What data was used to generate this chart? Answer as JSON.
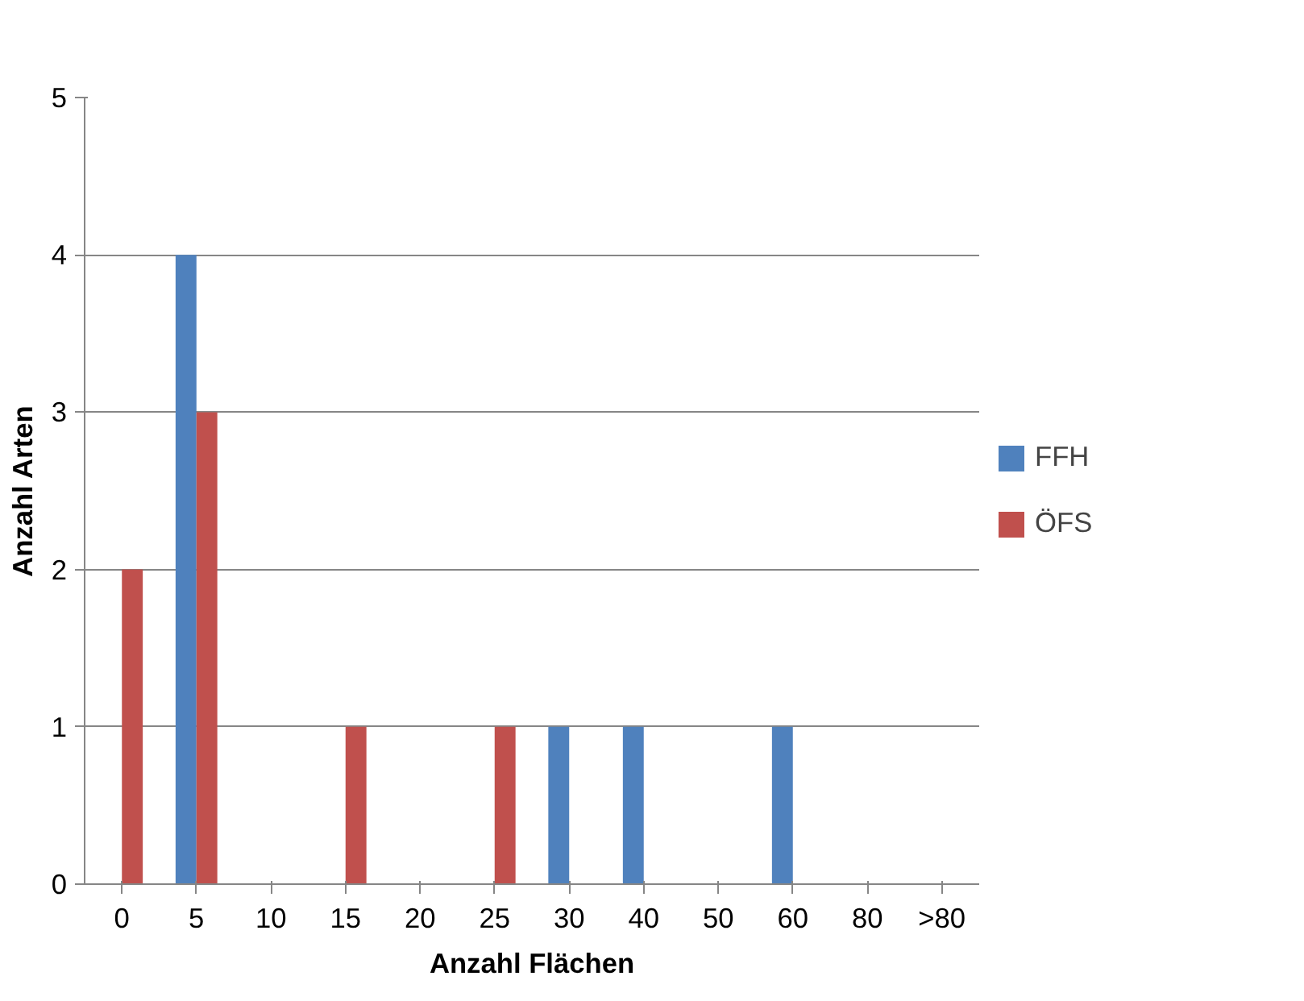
{
  "chart_data": {
    "type": "bar",
    "xlabel": "Anzahl Flächen",
    "ylabel": "Anzahl Arten",
    "categories": [
      "0",
      "5",
      "10",
      "15",
      "20",
      "25",
      "30",
      "40",
      "50",
      "60",
      "80",
      ">80"
    ],
    "series": [
      {
        "name": "FFH",
        "color": "#4f81bd",
        "values": [
          0,
          4,
          0,
          0,
          0,
          0,
          1,
          1,
          0,
          1,
          0,
          0
        ]
      },
      {
        "name": "ÖFS",
        "color": "#c0504d",
        "values": [
          2,
          3,
          0,
          1,
          0,
          1,
          0,
          0,
          0,
          0,
          0,
          0
        ]
      }
    ],
    "ylim": [
      0,
      5
    ],
    "yticks": [
      0,
      1,
      2,
      3,
      4,
      5
    ],
    "grid": "y",
    "legend": "right"
  }
}
